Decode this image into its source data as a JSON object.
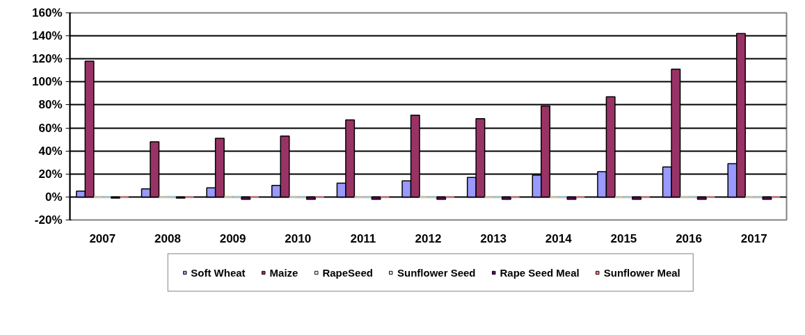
{
  "chart_data": {
    "type": "bar",
    "categories": [
      "2007",
      "2008",
      "2009",
      "2010",
      "2011",
      "2012",
      "2013",
      "2014",
      "2015",
      "2016",
      "2017"
    ],
    "series": [
      {
        "name": "Soft Wheat",
        "color": "#9999ff",
        "values": [
          5,
          7,
          8,
          10,
          12,
          14,
          17,
          19,
          22,
          26,
          29
        ]
      },
      {
        "name": "Maize",
        "color": "#993366",
        "values": [
          118,
          48,
          51,
          53,
          67,
          71,
          68,
          79,
          87,
          111,
          142
        ]
      },
      {
        "name": "RapeSeed",
        "color": "#ffffcc",
        "values": [
          0,
          0,
          0,
          0,
          0,
          0,
          0,
          0,
          0,
          0,
          0
        ]
      },
      {
        "name": "Sunflower Seed",
        "color": "#ccffff",
        "values": [
          0,
          0,
          0,
          0,
          0,
          0,
          0,
          0,
          0,
          0,
          0
        ]
      },
      {
        "name": "Rape Seed Meal",
        "color": "#660066",
        "values": [
          -1,
          -1,
          -2,
          -2,
          -2,
          -2,
          -2,
          -2,
          -2,
          -2,
          -2
        ]
      },
      {
        "name": "Sunflower Meal",
        "color": "#ff8080",
        "values": [
          0,
          0,
          0,
          0,
          0,
          0,
          0,
          0,
          0,
          0,
          0
        ]
      }
    ],
    "ylim": [
      -20,
      160
    ],
    "yticks": [
      {
        "value": -20,
        "label": "-20%"
      },
      {
        "value": 0,
        "label": "0%"
      },
      {
        "value": 20,
        "label": "20%"
      },
      {
        "value": 40,
        "label": "40%"
      },
      {
        "value": 60,
        "label": "60%"
      },
      {
        "value": 80,
        "label": "80%"
      },
      {
        "value": 100,
        "label": "100%"
      },
      {
        "value": 120,
        "label": "120%"
      },
      {
        "value": 140,
        "label": "140%"
      },
      {
        "value": 160,
        "label": "160%"
      }
    ],
    "grid": "y",
    "legend": "bottom"
  }
}
